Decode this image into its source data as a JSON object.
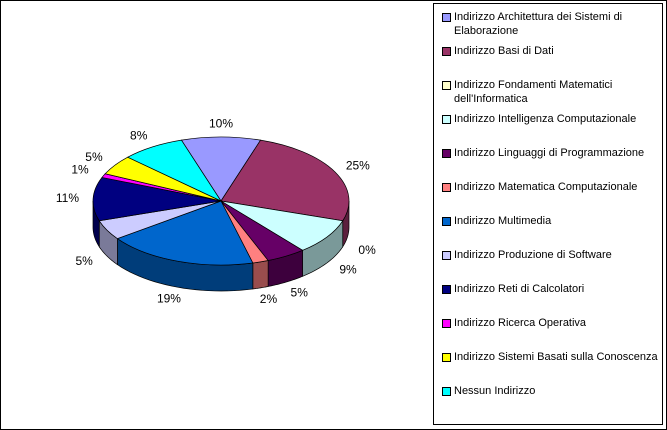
{
  "chart_data": {
    "type": "pie3d",
    "categories": [
      "Indirizzo Architettura dei Sistemi di Elaborazione",
      "Indirizzo Basi di Dati",
      "Indirizzo Fondamenti Matematici dell'Informatica",
      "Indirizzo Intelligenza Computazionale",
      "Indirizzo Linguaggi di Programmazione",
      "Indirizzo Matematica Computazionale",
      "Indirizzo Multimedia",
      "Indirizzo Produzione di Software",
      "Indirizzo Reti di Calcolatori",
      "Indirizzo Ricerca Operativa",
      "Indirizzo Sistemi Basati sulla Conoscenza",
      "Nessun Indirizzo"
    ],
    "values": [
      10,
      25,
      0,
      9,
      5,
      2,
      19,
      5,
      11,
      1,
      5,
      8
    ],
    "value_labels": [
      "10%",
      "25%",
      "0%",
      "9%",
      "5%",
      "2%",
      "19%",
      "5%",
      "11%",
      "1%",
      "5%",
      "8%"
    ],
    "colors": [
      "#9999ff",
      "#993366",
      "#ffffcc",
      "#ccffff",
      "#660066",
      "#ff8080",
      "#0066cc",
      "#ccccff",
      "#000080",
      "#ff00ff",
      "#ffff00",
      "#00ffff"
    ],
    "legend": "right"
  }
}
